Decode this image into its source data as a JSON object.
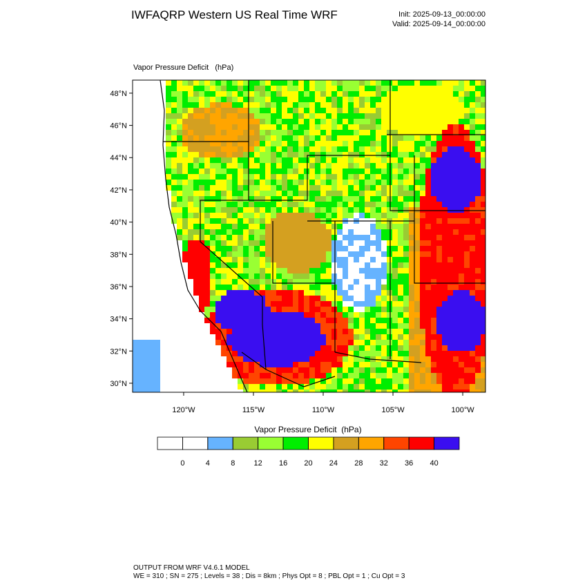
{
  "header": {
    "title": "IWFAQRP Western US Real Time WRF",
    "init": "Init: 2025-09-13_00:00:00",
    "valid": "Valid: 2025-09-14_00:00:00"
  },
  "map": {
    "subtitle": "Vapor Pressure Deficit   (hPa)",
    "xlim": [
      -123.66,
      -98.37
    ],
    "ylim": [
      29.44,
      48.81
    ],
    "xticks": [
      {
        "value": -120,
        "label": "120°W"
      },
      {
        "value": -115,
        "label": "115°W"
      },
      {
        "value": -110,
        "label": "110°W"
      },
      {
        "value": -105,
        "label": "105°W"
      },
      {
        "value": -100,
        "label": "100°W"
      }
    ],
    "yticks": [
      {
        "value": 30,
        "label": "30°N"
      },
      {
        "value": 32,
        "label": "32°N"
      },
      {
        "value": 34,
        "label": "34°N"
      },
      {
        "value": 36,
        "label": "36°N"
      },
      {
        "value": 38,
        "label": "38°N"
      },
      {
        "value": 40,
        "label": "40°N"
      },
      {
        "value": 42,
        "label": "42°N"
      },
      {
        "value": 44,
        "label": "44°N"
      },
      {
        "value": 46,
        "label": "46°N"
      },
      {
        "value": 48,
        "label": "48°N"
      }
    ]
  },
  "colorbar": {
    "title": "Vapor Pressure Deficit  (hPa)",
    "colors": [
      "#ffffff",
      "#ffffff",
      "#66b3ff",
      "#99cc33",
      "#99ff33",
      "#00ee00",
      "#ffff00",
      "#d4a020",
      "#ffa500",
      "#ff4500",
      "#ff0000",
      "#3a0ef0"
    ],
    "ticks": [
      0,
      4,
      8,
      12,
      16,
      20,
      24,
      28,
      32,
      36,
      40
    ]
  },
  "footer": {
    "line1": "OUTPUT FROM WRF V4.6.1 MODEL",
    "line2": "WE = 310 ; SN = 275 ; Levels = 38 ; Dis = 8km ; Phys Opt = 8 ; PBL Opt = 1 ; Cu Opt = 3"
  }
}
